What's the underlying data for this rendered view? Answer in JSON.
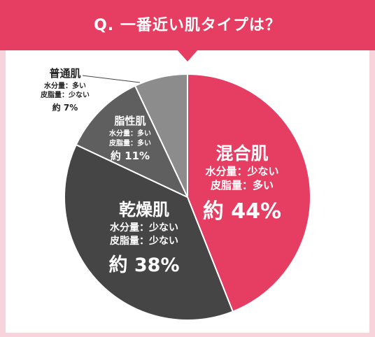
{
  "header": {
    "question": "Q. 一番近い肌タイプは？"
  },
  "colors": {
    "banner": "#e63e62",
    "page_bg": "#f7d3dc",
    "slice_mixed": "#e63e62",
    "slice_dry": "#454545",
    "slice_oily": "#5f5f5f",
    "slice_normal": "#8c8c8c"
  },
  "chart_data": {
    "type": "pie",
    "title": "Q. 一番近い肌タイプは？",
    "slices": [
      {
        "name": "混合肌",
        "desc1": "水分量：少ない",
        "desc2": "皮脂量：多い",
        "value_label": "約 44%",
        "value": 44,
        "color": "#e63e62"
      },
      {
        "name": "乾燥肌",
        "desc1": "水分量：少ない",
        "desc2": "皮脂量：少ない",
        "value_label": "約 38%",
        "value": 38,
        "color": "#454545"
      },
      {
        "name": "脂性肌",
        "desc1": "水分量：多い",
        "desc2": "皮脂量：多い",
        "value_label": "約 11%",
        "value": 11,
        "color": "#5f5f5f"
      },
      {
        "name": "普通肌",
        "desc1": "水分量：多い",
        "desc2": "皮脂量：少ない",
        "value_label": "約 7%",
        "value": 7,
        "color": "#8c8c8c"
      }
    ],
    "legend": "none",
    "start_angle_deg": 0,
    "direction": "clockwise"
  }
}
